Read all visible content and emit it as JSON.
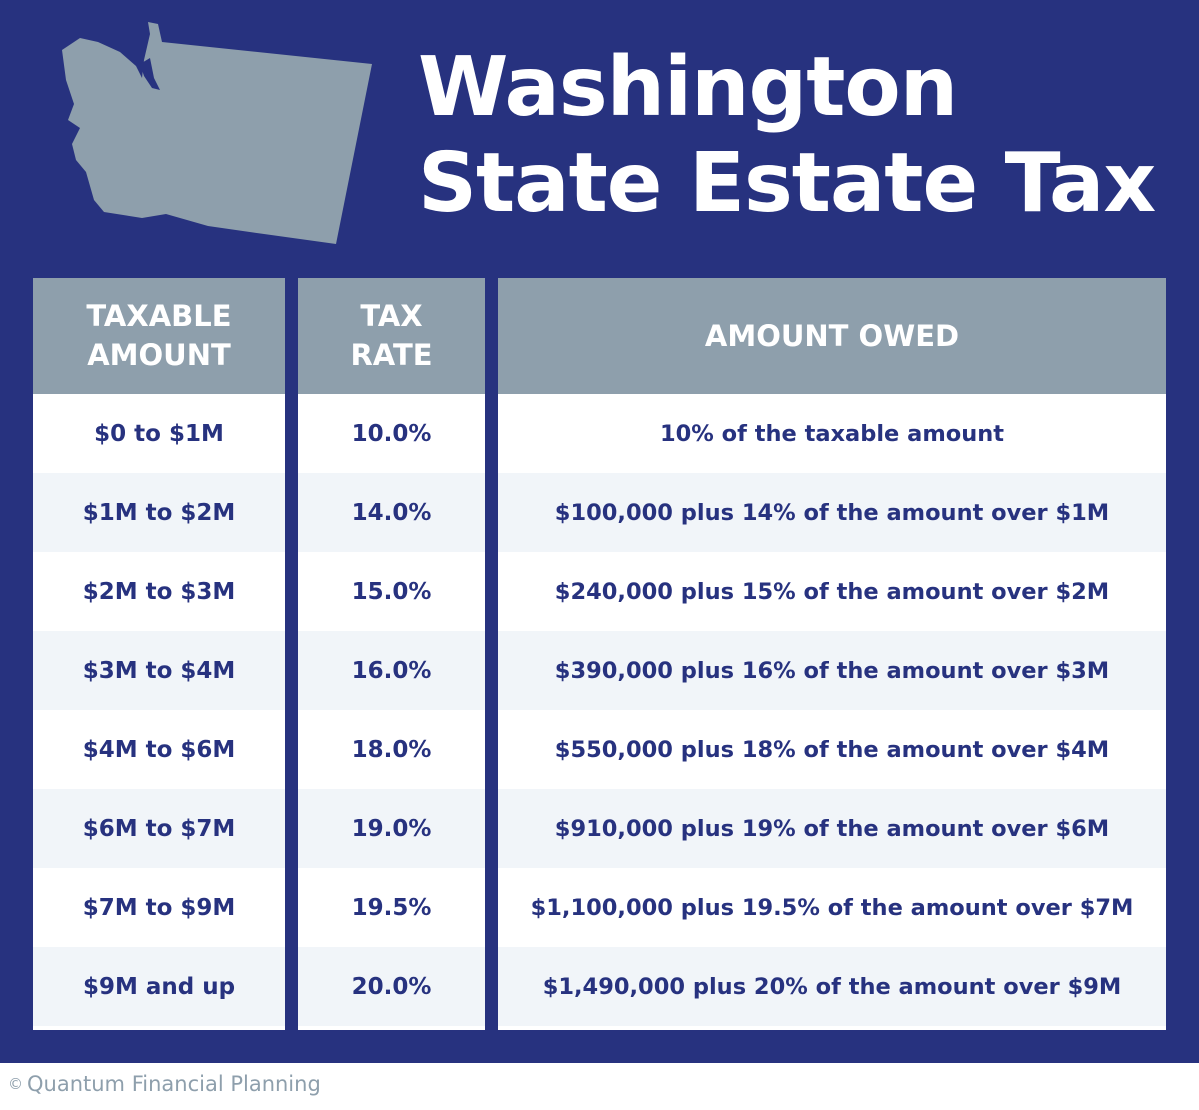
{
  "title": {
    "line1": "Washington",
    "line2": "State Estate Tax"
  },
  "colors": {
    "navy": "#27327f",
    "header_gray": "#8e9fac",
    "row_alt": "#f1f5f9",
    "white": "#ffffff"
  },
  "icons": {
    "state": "washington-state-silhouette-icon"
  },
  "table": {
    "headers": {
      "taxable": [
        "TAXABLE",
        "AMOUNT"
      ],
      "rate": [
        "TAX",
        "RATE"
      ],
      "owed": "AMOUNT OWED"
    },
    "rows": [
      {
        "taxable": "$0 to $1M",
        "rate": "10.0%",
        "owed": "10% of the taxable amount"
      },
      {
        "taxable": "$1M to $2M",
        "rate": "14.0%",
        "owed": "$100,000 plus 14% of the amount over $1M"
      },
      {
        "taxable": "$2M to $3M",
        "rate": "15.0%",
        "owed": "$240,000 plus 15% of the amount over $2M"
      },
      {
        "taxable": "$3M to $4M",
        "rate": "16.0%",
        "owed": "$390,000 plus 16% of the amount over $3M"
      },
      {
        "taxable": "$4M to $6M",
        "rate": "18.0%",
        "owed": "$550,000 plus 18% of the amount over $4M"
      },
      {
        "taxable": "$6M to $7M",
        "rate": "19.0%",
        "owed": "$910,000 plus 19% of the amount over $6M"
      },
      {
        "taxable": "$7M to $9M",
        "rate": "19.5%",
        "owed": "$1,100,000 plus 19.5% of the amount over $7M"
      },
      {
        "taxable": "$9M and up",
        "rate": "20.0%",
        "owed": "$1,490,000 plus 20% of the amount over $9M"
      }
    ]
  },
  "footer": {
    "copyright_symbol": "©",
    "brand": "Quantum Financial Planning"
  }
}
